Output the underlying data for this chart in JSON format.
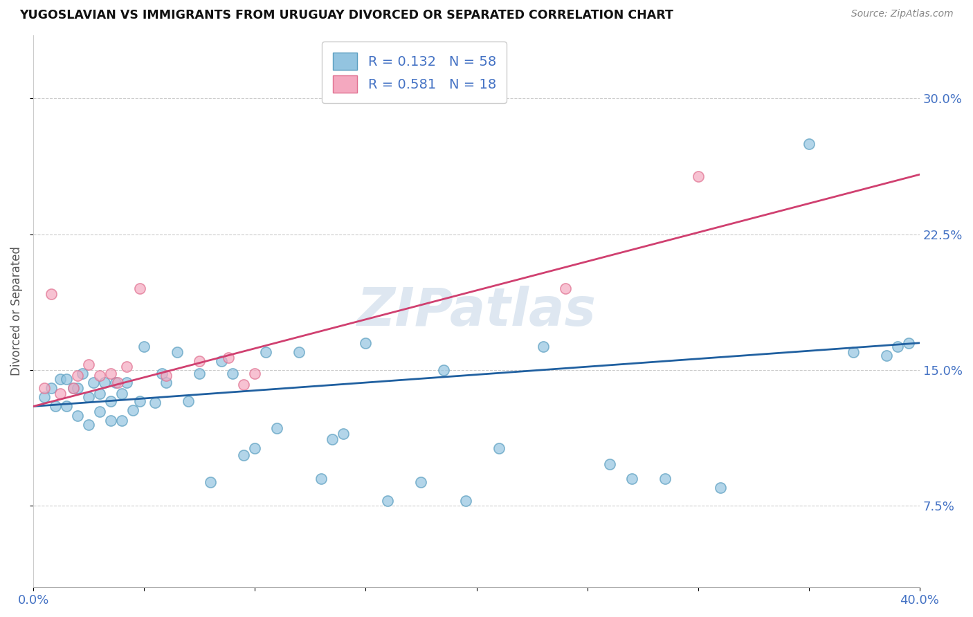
{
  "title": "YUGOSLAVIAN VS IMMIGRANTS FROM URUGUAY DIVORCED OR SEPARATED CORRELATION CHART",
  "source_text": "Source: ZipAtlas.com",
  "ylabel": "Divorced or Separated",
  "xlim": [
    0.0,
    0.4
  ],
  "ylim": [
    0.03,
    0.335
  ],
  "xticks": [
    0.0,
    0.05,
    0.1,
    0.15,
    0.2,
    0.25,
    0.3,
    0.35,
    0.4
  ],
  "xtick_labels": [
    "0.0%",
    "",
    "",
    "",
    "",
    "",
    "",
    "",
    "40.0%"
  ],
  "yticks": [
    0.075,
    0.15,
    0.225,
    0.3
  ],
  "ytick_labels": [
    "7.5%",
    "15.0%",
    "22.5%",
    "30.0%"
  ],
  "blue_color": "#93c4e0",
  "pink_color": "#f4a8bf",
  "blue_edge_color": "#5a9ec0",
  "pink_edge_color": "#e07090",
  "blue_line_color": "#2060a0",
  "pink_line_color": "#d04070",
  "legend_text_blue": "R = 0.132   N = 58",
  "legend_text_pink": "R = 0.581   N = 18",
  "watermark": "ZIPatlas",
  "blue_scatter_x": [
    0.005,
    0.008,
    0.01,
    0.012,
    0.015,
    0.015,
    0.018,
    0.02,
    0.02,
    0.022,
    0.025,
    0.025,
    0.027,
    0.03,
    0.03,
    0.032,
    0.035,
    0.035,
    0.037,
    0.04,
    0.04,
    0.042,
    0.045,
    0.048,
    0.05,
    0.055,
    0.058,
    0.06,
    0.065,
    0.07,
    0.075,
    0.08,
    0.085,
    0.09,
    0.095,
    0.1,
    0.105,
    0.11,
    0.12,
    0.13,
    0.135,
    0.14,
    0.15,
    0.16,
    0.175,
    0.185,
    0.195,
    0.21,
    0.23,
    0.26,
    0.27,
    0.285,
    0.31,
    0.35,
    0.37,
    0.385,
    0.39,
    0.395
  ],
  "blue_scatter_y": [
    0.135,
    0.14,
    0.13,
    0.145,
    0.13,
    0.145,
    0.14,
    0.125,
    0.14,
    0.148,
    0.12,
    0.135,
    0.143,
    0.127,
    0.137,
    0.143,
    0.122,
    0.133,
    0.143,
    0.122,
    0.137,
    0.143,
    0.128,
    0.133,
    0.163,
    0.132,
    0.148,
    0.143,
    0.16,
    0.133,
    0.148,
    0.088,
    0.155,
    0.148,
    0.103,
    0.107,
    0.16,
    0.118,
    0.16,
    0.09,
    0.112,
    0.115,
    0.165,
    0.078,
    0.088,
    0.15,
    0.078,
    0.107,
    0.163,
    0.098,
    0.09,
    0.09,
    0.085,
    0.275,
    0.16,
    0.158,
    0.163,
    0.165
  ],
  "pink_scatter_x": [
    0.005,
    0.008,
    0.012,
    0.018,
    0.02,
    0.025,
    0.03,
    0.035,
    0.038,
    0.042,
    0.048,
    0.06,
    0.075,
    0.088,
    0.095,
    0.1,
    0.24,
    0.3
  ],
  "pink_scatter_y": [
    0.14,
    0.192,
    0.137,
    0.14,
    0.147,
    0.153,
    0.147,
    0.148,
    0.143,
    0.152,
    0.195,
    0.147,
    0.155,
    0.157,
    0.142,
    0.148,
    0.195,
    0.257
  ],
  "blue_trend_x": [
    0.0,
    0.4
  ],
  "blue_trend_y": [
    0.13,
    0.165
  ],
  "pink_trend_x": [
    0.0,
    0.4
  ],
  "pink_trend_y": [
    0.13,
    0.258
  ]
}
